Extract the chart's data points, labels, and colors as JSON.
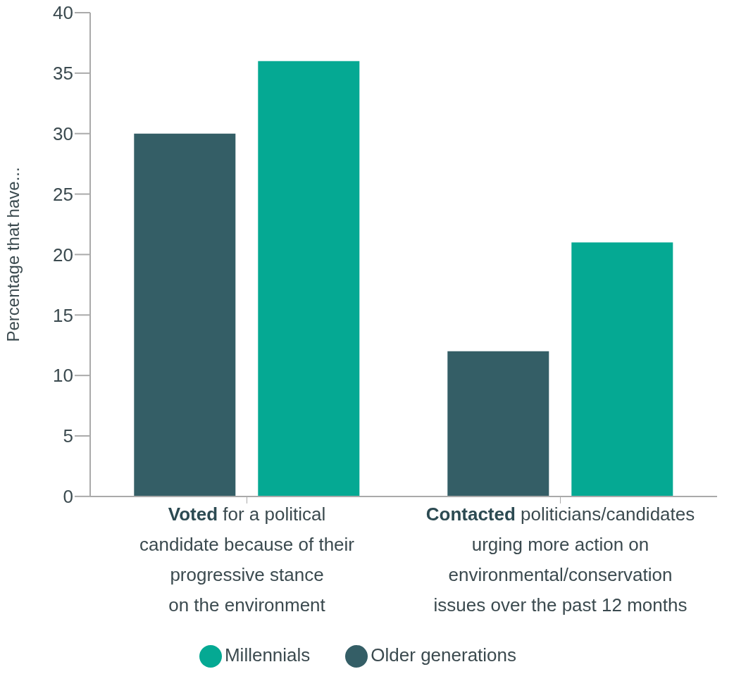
{
  "chart_data": {
    "type": "bar",
    "ylabel": "Percentage that have...",
    "categories": [
      "Voted for a political\ncandidate because of their\nprogressive stance\non the environment",
      "Contacted politicians/candidates\nurging more action on\nenvironmental/conservation\nissues over the past 12 months"
    ],
    "series": [
      {
        "name": "Older generations",
        "color": "#345e66",
        "values": [
          30,
          12
        ]
      },
      {
        "name": "Millennials",
        "color": "#05a993",
        "values": [
          36,
          21
        ]
      }
    ],
    "ylim": [
      0,
      40
    ],
    "yticks": [
      0,
      5,
      10,
      15,
      20,
      25,
      30,
      35,
      40
    ],
    "grid": false,
    "legend": "bottom"
  }
}
